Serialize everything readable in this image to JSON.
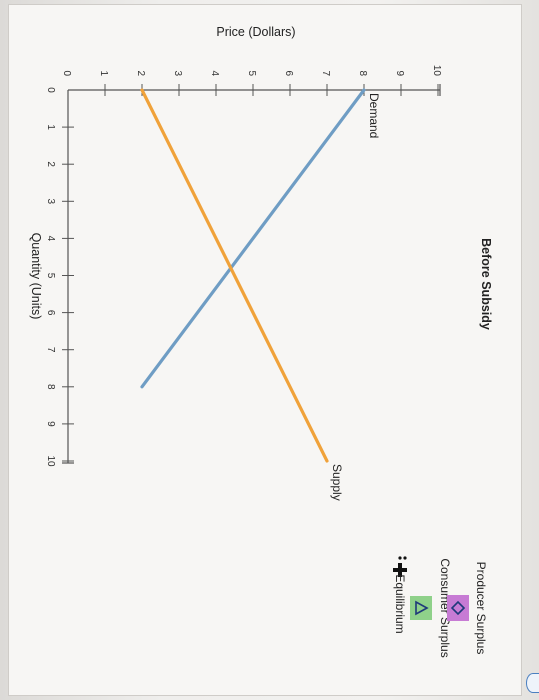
{
  "chart_data": {
    "type": "line",
    "title": "Before Subsidy",
    "xlabel": "Quantity (Units)",
    "ylabel": "Price (Dollars)",
    "xlim": [
      0,
      10
    ],
    "ylim": [
      0,
      10
    ],
    "x_ticks": [
      "0",
      "1",
      "2",
      "3",
      "4",
      "5",
      "6",
      "7",
      "8",
      "9",
      "10"
    ],
    "y_ticks": [
      "0",
      "1",
      "2",
      "3",
      "4",
      "5",
      "6",
      "7",
      "8",
      "9",
      "10"
    ],
    "grid": false,
    "series": [
      {
        "name": "Demand",
        "color": "#6f9dc4",
        "points": [
          [
            0,
            8
          ],
          [
            8,
            2
          ]
        ]
      },
      {
        "name": "Supply",
        "color": "#f0a23a",
        "points": [
          [
            0,
            2
          ],
          [
            10,
            7
          ]
        ]
      }
    ]
  },
  "tools": {
    "equilibrium_label": "Equilibrium",
    "consumer_surplus_label": "Consumer Surplus",
    "producer_surplus_label": "Producer Surplus",
    "equilibrium_icon": "crosshair-plus-icon",
    "consumer_surplus_icon": "triangle-icon",
    "producer_surplus_icon": "diamond-icon",
    "consumer_surplus_color": "#8fd18a",
    "producer_surplus_color": "#c77bd4"
  },
  "scroll_icon": "scroll-handle-icon"
}
